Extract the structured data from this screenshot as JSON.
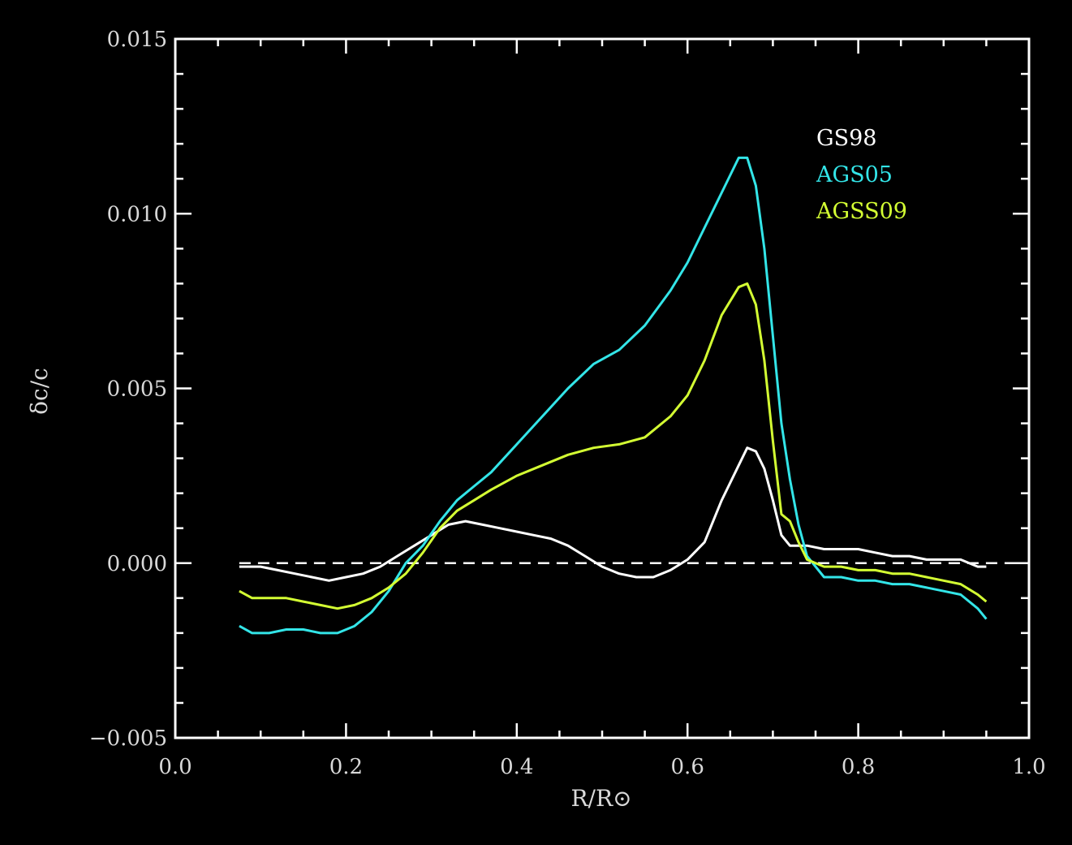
{
  "chart_data": {
    "type": "line",
    "xlabel": "R/R⊙",
    "ylabel": "δc/c",
    "xlim": [
      0.0,
      1.0
    ],
    "ylim": [
      -0.005,
      0.015
    ],
    "x_ticks": [
      {
        "value": 0.0,
        "label": "0.0"
      },
      {
        "value": 0.2,
        "label": "0.2"
      },
      {
        "value": 0.4,
        "label": "0.4"
      },
      {
        "value": 0.6,
        "label": "0.6"
      },
      {
        "value": 0.8,
        "label": "0.8"
      },
      {
        "value": 1.0,
        "label": "1.0"
      }
    ],
    "y_ticks": [
      {
        "value": -0.005,
        "label": "−0.005"
      },
      {
        "value": 0.0,
        "label": "0.000"
      },
      {
        "value": 0.005,
        "label": "0.005"
      },
      {
        "value": 0.01,
        "label": "0.010"
      },
      {
        "value": 0.015,
        "label": "0.015"
      }
    ],
    "x_minor_step": 0.05,
    "y_minor_step": 0.001,
    "reference_line": {
      "y": 0.0,
      "style": "dashed",
      "x_range": [
        0.075,
        1.0
      ]
    },
    "legend_position": "top-right",
    "series": [
      {
        "name": "GS98",
        "color": "#ffffff",
        "points": [
          [
            0.075,
            -0.0001
          ],
          [
            0.1,
            -0.0001
          ],
          [
            0.12,
            -0.0002
          ],
          [
            0.14,
            -0.0003
          ],
          [
            0.16,
            -0.0004
          ],
          [
            0.18,
            -0.0005
          ],
          [
            0.2,
            -0.0004
          ],
          [
            0.22,
            -0.0003
          ],
          [
            0.24,
            -0.0001
          ],
          [
            0.26,
            0.0002
          ],
          [
            0.28,
            0.0005
          ],
          [
            0.3,
            0.0008
          ],
          [
            0.32,
            0.0011
          ],
          [
            0.34,
            0.0012
          ],
          [
            0.36,
            0.0011
          ],
          [
            0.38,
            0.001
          ],
          [
            0.4,
            0.0009
          ],
          [
            0.42,
            0.0008
          ],
          [
            0.44,
            0.0007
          ],
          [
            0.46,
            0.0005
          ],
          [
            0.48,
            0.0002
          ],
          [
            0.5,
            -0.0001
          ],
          [
            0.52,
            -0.0003
          ],
          [
            0.54,
            -0.0004
          ],
          [
            0.56,
            -0.0004
          ],
          [
            0.58,
            -0.0002
          ],
          [
            0.6,
            0.0001
          ],
          [
            0.62,
            0.0006
          ],
          [
            0.64,
            0.0018
          ],
          [
            0.66,
            0.0028
          ],
          [
            0.67,
            0.0033
          ],
          [
            0.68,
            0.0032
          ],
          [
            0.69,
            0.0027
          ],
          [
            0.7,
            0.0018
          ],
          [
            0.71,
            0.0008
          ],
          [
            0.72,
            0.0005
          ],
          [
            0.74,
            0.0005
          ],
          [
            0.76,
            0.0004
          ],
          [
            0.78,
            0.0004
          ],
          [
            0.8,
            0.0004
          ],
          [
            0.82,
            0.0003
          ],
          [
            0.84,
            0.0002
          ],
          [
            0.86,
            0.0002
          ],
          [
            0.88,
            0.0001
          ],
          [
            0.9,
            0.0001
          ],
          [
            0.92,
            0.0001
          ],
          [
            0.94,
            -0.0001
          ],
          [
            0.95,
            -0.0001
          ]
        ]
      },
      {
        "name": "AGS05",
        "color": "#33e5e8",
        "points": [
          [
            0.075,
            -0.0018
          ],
          [
            0.09,
            -0.002
          ],
          [
            0.11,
            -0.002
          ],
          [
            0.13,
            -0.0019
          ],
          [
            0.15,
            -0.0019
          ],
          [
            0.17,
            -0.002
          ],
          [
            0.19,
            -0.002
          ],
          [
            0.21,
            -0.0018
          ],
          [
            0.23,
            -0.0014
          ],
          [
            0.25,
            -0.0008
          ],
          [
            0.27,
            0.0
          ],
          [
            0.29,
            0.0005
          ],
          [
            0.31,
            0.0012
          ],
          [
            0.33,
            0.0018
          ],
          [
            0.35,
            0.0022
          ],
          [
            0.37,
            0.0026
          ],
          [
            0.4,
            0.0034
          ],
          [
            0.43,
            0.0042
          ],
          [
            0.46,
            0.005
          ],
          [
            0.49,
            0.0057
          ],
          [
            0.52,
            0.0061
          ],
          [
            0.55,
            0.0068
          ],
          [
            0.58,
            0.0078
          ],
          [
            0.6,
            0.0086
          ],
          [
            0.62,
            0.0096
          ],
          [
            0.64,
            0.0106
          ],
          [
            0.66,
            0.0116
          ],
          [
            0.67,
            0.0116
          ],
          [
            0.68,
            0.0108
          ],
          [
            0.69,
            0.009
          ],
          [
            0.7,
            0.0065
          ],
          [
            0.71,
            0.004
          ],
          [
            0.72,
            0.0024
          ],
          [
            0.73,
            0.0011
          ],
          [
            0.74,
            0.0002
          ],
          [
            0.76,
            -0.0004
          ],
          [
            0.78,
            -0.0004
          ],
          [
            0.8,
            -0.0005
          ],
          [
            0.82,
            -0.0005
          ],
          [
            0.84,
            -0.0006
          ],
          [
            0.86,
            -0.0006
          ],
          [
            0.88,
            -0.0007
          ],
          [
            0.9,
            -0.0008
          ],
          [
            0.92,
            -0.0009
          ],
          [
            0.94,
            -0.0013
          ],
          [
            0.95,
            -0.0016
          ]
        ]
      },
      {
        "name": "AGSS09",
        "color": "#d4ff33",
        "points": [
          [
            0.075,
            -0.0008
          ],
          [
            0.09,
            -0.001
          ],
          [
            0.11,
            -0.001
          ],
          [
            0.13,
            -0.001
          ],
          [
            0.15,
            -0.0011
          ],
          [
            0.17,
            -0.0012
          ],
          [
            0.19,
            -0.0013
          ],
          [
            0.21,
            -0.0012
          ],
          [
            0.23,
            -0.001
          ],
          [
            0.25,
            -0.0007
          ],
          [
            0.27,
            -0.0003
          ],
          [
            0.29,
            0.0003
          ],
          [
            0.31,
            0.001
          ],
          [
            0.33,
            0.0015
          ],
          [
            0.35,
            0.0018
          ],
          [
            0.37,
            0.0021
          ],
          [
            0.4,
            0.0025
          ],
          [
            0.43,
            0.0028
          ],
          [
            0.46,
            0.0031
          ],
          [
            0.49,
            0.0033
          ],
          [
            0.52,
            0.0034
          ],
          [
            0.55,
            0.0036
          ],
          [
            0.58,
            0.0042
          ],
          [
            0.6,
            0.0048
          ],
          [
            0.62,
            0.0058
          ],
          [
            0.64,
            0.0071
          ],
          [
            0.66,
            0.0079
          ],
          [
            0.67,
            0.008
          ],
          [
            0.68,
            0.0074
          ],
          [
            0.69,
            0.0058
          ],
          [
            0.7,
            0.0035
          ],
          [
            0.71,
            0.0014
          ],
          [
            0.72,
            0.0012
          ],
          [
            0.73,
            0.0006
          ],
          [
            0.74,
            0.0001
          ],
          [
            0.76,
            -0.0001
          ],
          [
            0.78,
            -0.0001
          ],
          [
            0.8,
            -0.0002
          ],
          [
            0.82,
            -0.0002
          ],
          [
            0.84,
            -0.0003
          ],
          [
            0.86,
            -0.0003
          ],
          [
            0.88,
            -0.0004
          ],
          [
            0.9,
            -0.0005
          ],
          [
            0.92,
            -0.0006
          ],
          [
            0.94,
            -0.0009
          ],
          [
            0.95,
            -0.0011
          ]
        ]
      }
    ]
  }
}
